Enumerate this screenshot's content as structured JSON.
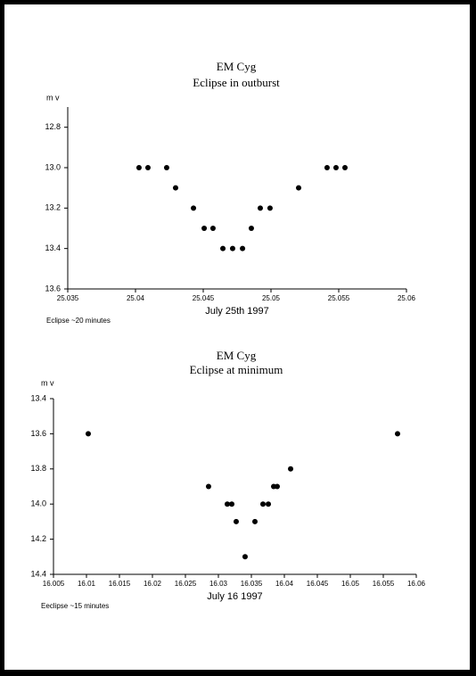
{
  "chart_data": [
    {
      "type": "scatter",
      "title": "EM Cyg",
      "subtitle": "Eclipse in outburst",
      "y_label": "m v",
      "x_label": "July 25th 1997",
      "annotation": "Eclipse ~20 minutes",
      "y_inverted": true,
      "color": "#000000",
      "x": [
        25.04026,
        25.04092,
        25.0423,
        25.04296,
        25.04428,
        25.04507,
        25.04572,
        25.04645,
        25.04717,
        25.0479,
        25.04855,
        25.04921,
        25.04993,
        25.05204,
        25.05414,
        25.0548,
        25.05546
      ],
      "values": [
        13.0,
        13.0,
        13.0,
        13.1,
        13.2,
        13.3,
        13.3,
        13.4,
        13.4,
        13.4,
        13.3,
        13.2,
        13.2,
        13.1,
        13.0,
        13.0,
        13.0
      ],
      "xlim": [
        25.035,
        25.06
      ],
      "xticks": [
        25.035,
        25.04,
        25.045,
        25.05,
        25.055,
        25.06
      ],
      "ylim": [
        12.7,
        13.6
      ],
      "yticks": [
        12.8,
        {
          "value": 13,
          "label": "13.0"
        },
        13.2,
        13.4,
        13.6
      ]
    },
    {
      "type": "scatter",
      "title": "EM Cyg",
      "subtitle": "Eclipse at minimum",
      "y_label": "m v",
      "x_label": "July 16 1997",
      "annotation": "Eeclipse ~15 minutes",
      "y_inverted": true,
      "color": "#000000",
      "x": [
        16.01027,
        16.02851,
        16.03135,
        16.03203,
        16.0327,
        16.03405,
        16.03554,
        16.03676,
        16.03757,
        16.03838,
        16.03892,
        16.04095,
        16.05716
      ],
      "values": [
        13.6,
        13.9,
        14.0,
        14.0,
        14.1,
        14.3,
        14.1,
        14.0,
        14.0,
        13.9,
        13.9,
        13.8,
        13.6
      ],
      "xlim": [
        16.005,
        16.06
      ],
      "xticks": [
        16.005,
        16.01,
        16.015,
        16.02,
        16.025,
        16.03,
        16.035,
        16.04,
        16.045,
        16.05,
        16.055,
        16.06
      ],
      "ylim": [
        13.4,
        14.4
      ],
      "yticks": [
        13.4,
        13.6,
        13.8,
        {
          "value": 14,
          "label": "14.0"
        },
        14.2,
        14.4
      ]
    }
  ]
}
